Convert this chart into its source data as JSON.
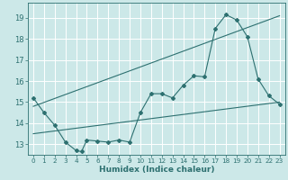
{
  "xlabel": "Humidex (Indice chaleur)",
  "bg_color": "#cce8e8",
  "grid_color": "#ffffff",
  "line_color": "#2d7070",
  "xlim": [
    -0.5,
    23.5
  ],
  "ylim": [
    12.5,
    19.7
  ],
  "xticks": [
    0,
    1,
    2,
    3,
    4,
    5,
    6,
    7,
    8,
    9,
    10,
    11,
    12,
    13,
    14,
    15,
    16,
    17,
    18,
    19,
    20,
    21,
    22,
    23
  ],
  "yticks": [
    13,
    14,
    15,
    16,
    17,
    18,
    19
  ],
  "line1_x": [
    0,
    1,
    2,
    3,
    4,
    4.5,
    5,
    6,
    7,
    8,
    9,
    10,
    11,
    12,
    13,
    14,
    15,
    16,
    17,
    18,
    19,
    20,
    21,
    22,
    23
  ],
  "line1_y": [
    15.2,
    14.5,
    13.9,
    13.1,
    12.7,
    12.65,
    13.2,
    13.15,
    13.1,
    13.2,
    13.1,
    14.5,
    15.4,
    15.4,
    15.2,
    15.8,
    16.25,
    16.2,
    18.5,
    19.15,
    18.9,
    18.1,
    16.1,
    15.3,
    14.9
  ],
  "line2_x": [
    0,
    23
  ],
  "line2_y": [
    13.5,
    15.0
  ],
  "line3_x": [
    0,
    23
  ],
  "line3_y": [
    14.8,
    19.1
  ]
}
